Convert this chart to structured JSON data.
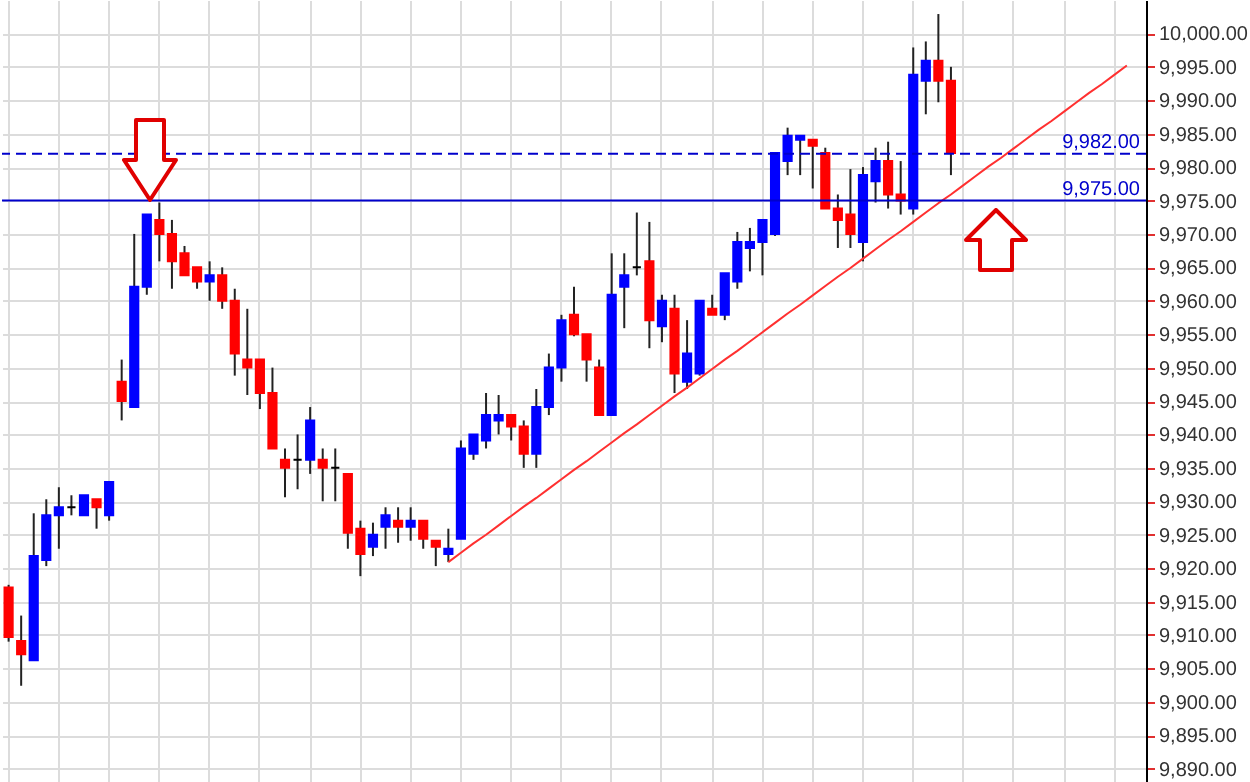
{
  "chart_data": {
    "type": "candlestick",
    "tick_labels": "y",
    "grid": true,
    "categories": [
      null,
      null,
      null,
      null,
      null,
      null,
      null,
      null,
      null,
      null,
      null,
      null,
      null,
      null,
      null,
      null,
      null,
      null,
      null,
      null,
      null,
      null,
      null,
      null,
      null,
      null,
      null,
      null,
      null,
      null,
      null,
      null,
      null,
      null,
      null,
      null,
      null,
      null,
      null,
      null,
      null,
      null,
      null,
      null,
      null,
      null,
      null,
      null,
      null,
      null,
      null,
      null,
      null,
      null,
      null,
      null,
      null,
      null,
      null,
      null,
      null,
      null,
      null,
      null,
      null,
      null,
      null,
      null,
      null,
      null,
      null,
      null,
      null,
      null,
      null,
      null,
      null,
      null,
      null,
      null,
      null,
      null,
      null,
      null,
      null,
      null,
      null,
      null,
      null,
      null,
      null
    ],
    "ohlc": [
      [
        9917.1,
        9917.5,
        9909.0,
        9909.7
      ],
      [
        9909.1,
        9912.9,
        9902.4,
        9907.1
      ],
      [
        9906.2,
        9928.2,
        9906.2,
        9921.8
      ],
      [
        9921.2,
        9930.3,
        9920.3,
        9927.9
      ],
      [
        9927.9,
        9932.1,
        9922.9,
        9929.1
      ],
      [
        9929.1,
        9930.9,
        9927.9,
        9929.1
      ],
      [
        9927.9,
        9930.9,
        9927.9,
        9930.9
      ],
      [
        9930.3,
        9930.3,
        9925.9,
        9929.1
      ],
      [
        9927.9,
        9932.9,
        9927.1,
        9932.9
      ],
      [
        9947.9,
        9951.2,
        9942.1,
        9945.0
      ],
      [
        9944.1,
        9970.0,
        9944.1,
        9962.1
      ],
      [
        9962.1,
        9972.9,
        9960.9,
        9972.9
      ],
      [
        9972.1,
        9974.7,
        9965.9,
        9970.0
      ],
      [
        9970.0,
        9972.1,
        9961.8,
        9965.9
      ],
      [
        9967.1,
        9968.2,
        9963.8,
        9963.8
      ],
      [
        9965.0,
        9965.0,
        9961.8,
        9962.9
      ],
      [
        9962.9,
        9965.9,
        9960.0,
        9963.8
      ],
      [
        9963.8,
        9965.0,
        9958.8,
        9960.0
      ],
      [
        9960.0,
        9961.8,
        9948.8,
        9952.1
      ],
      [
        9951.2,
        9958.8,
        9945.9,
        9950.0
      ],
      [
        9951.2,
        9951.2,
        9943.8,
        9946.2
      ],
      [
        9946.2,
        9950.0,
        9937.9,
        9937.9
      ],
      [
        9936.2,
        9937.9,
        9930.6,
        9935.0
      ],
      [
        9936.2,
        9940.0,
        9931.8,
        9936.2
      ],
      [
        9936.2,
        9944.1,
        9934.1,
        9942.1
      ],
      [
        9936.2,
        9937.9,
        9930.0,
        9935.0
      ],
      [
        9935.0,
        9937.9,
        9930.0,
        9935.0
      ],
      [
        9934.1,
        9934.1,
        9922.9,
        9925.3
      ],
      [
        9925.9,
        9927.1,
        9918.8,
        9922.1
      ],
      [
        9923.2,
        9926.8,
        9921.8,
        9925.0
      ],
      [
        9926.2,
        9929.1,
        9922.9,
        9927.9
      ],
      [
        9927.1,
        9929.1,
        9923.8,
        9926.2
      ],
      [
        9926.2,
        9929.1,
        9924.1,
        9927.1
      ],
      [
        9927.1,
        9927.1,
        9922.9,
        9924.4
      ],
      [
        9924.1,
        9924.1,
        9920.3,
        9923.2
      ],
      [
        9922.1,
        9925.9,
        9920.9,
        9922.9
      ],
      [
        9924.4,
        9939.1,
        9924.4,
        9937.9
      ],
      [
        9937.1,
        9940.0,
        9936.2,
        9940.0
      ],
      [
        9939.1,
        9946.2,
        9937.9,
        9942.9
      ],
      [
        9942.1,
        9945.9,
        9940.0,
        9942.9
      ],
      [
        9942.9,
        9942.9,
        9939.1,
        9941.2
      ],
      [
        9941.2,
        9942.1,
        9935.0,
        9937.1
      ],
      [
        9937.1,
        9946.8,
        9935.0,
        9944.1
      ],
      [
        9944.1,
        9952.1,
        9942.9,
        9950.0
      ],
      [
        9950.0,
        9957.9,
        9947.9,
        9957.1
      ],
      [
        9957.9,
        9962.1,
        9954.7,
        9955.0
      ],
      [
        9955.0,
        9955.0,
        9947.9,
        9951.2
      ],
      [
        9950.0,
        9951.2,
        9942.9,
        9942.9
      ],
      [
        9942.9,
        9967.1,
        9942.9,
        9960.9
      ],
      [
        9962.1,
        9967.1,
        9955.9,
        9963.8
      ],
      [
        9965.0,
        9973.2,
        9963.8,
        9965.0
      ],
      [
        9965.9,
        9971.8,
        9952.9,
        9957.1
      ],
      [
        9956.2,
        9960.9,
        9953.8,
        9960.0
      ],
      [
        9958.8,
        9960.9,
        9946.2,
        9949.1
      ],
      [
        9947.9,
        9957.1,
        9946.8,
        9952.1
      ],
      [
        9949.1,
        9960.0,
        9948.8,
        9960.0
      ],
      [
        9958.8,
        9960.9,
        9957.9,
        9957.9
      ],
      [
        9957.9,
        9964.1,
        9957.1,
        9964.1
      ],
      [
        9962.9,
        9970.3,
        9961.8,
        9968.8
      ],
      [
        9967.9,
        9970.9,
        9964.4,
        9968.8
      ],
      [
        9968.8,
        9972.1,
        9963.8,
        9972.1
      ],
      [
        9970.0,
        9982.1,
        9969.7,
        9982.1
      ],
      [
        9980.9,
        9985.9,
        9978.8,
        9984.7
      ],
      [
        9984.1,
        9984.7,
        9978.8,
        9984.7
      ],
      [
        9984.1,
        9984.1,
        9976.8,
        9983.2
      ],
      [
        9982.1,
        9982.9,
        9973.8,
        9973.8
      ],
      [
        9973.8,
        9975.9,
        9967.9,
        9972.1
      ],
      [
        9972.9,
        9979.7,
        9967.9,
        9970.0
      ],
      [
        9968.8,
        9980.0,
        9965.9,
        9978.8
      ],
      [
        9977.9,
        9982.9,
        9974.7,
        9980.9
      ],
      [
        9980.9,
        9983.8,
        9973.8,
        9975.9
      ],
      [
        9975.9,
        9980.9,
        9972.9,
        9975.0
      ],
      [
        9973.8,
        9997.9,
        9972.9,
        9993.8
      ],
      [
        9992.9,
        9998.8,
        9987.9,
        9995.9
      ],
      [
        9995.9,
        10002.9,
        9989.7,
        9992.9
      ],
      [
        9992.9,
        9995.0,
        9978.8,
        9982.1
      ],
      null,
      null,
      null,
      null,
      null,
      null,
      null,
      null,
      null,
      null,
      null,
      null,
      null,
      null,
      null
    ],
    "colors": [
      "#ff0000",
      "#ff0000",
      "#0000ff",
      "#0000ff",
      "#0000ff",
      "#000000",
      "#0000ff",
      "#ff0000",
      "#0000ff",
      "#ff0000",
      "#0000ff",
      "#0000ff",
      "#ff0000",
      "#ff0000",
      "#ff0000",
      "#ff0000",
      "#0000ff",
      "#ff0000",
      "#ff0000",
      "#ff0000",
      "#ff0000",
      "#ff0000",
      "#ff0000",
      "#000000",
      "#0000ff",
      "#ff0000",
      "#000000",
      "#ff0000",
      "#ff0000",
      "#0000ff",
      "#0000ff",
      "#ff0000",
      "#0000ff",
      "#ff0000",
      "#ff0000",
      "#0000ff",
      "#0000ff",
      "#0000ff",
      "#0000ff",
      "#0000ff",
      "#ff0000",
      "#ff0000",
      "#0000ff",
      "#0000ff",
      "#0000ff",
      "#ff0000",
      "#ff0000",
      "#ff0000",
      "#0000ff",
      "#0000ff",
      "#000000",
      "#ff0000",
      "#0000ff",
      "#ff0000",
      "#0000ff",
      "#0000ff",
      "#ff0000",
      "#0000ff",
      "#0000ff",
      "#0000ff",
      "#0000ff",
      "#0000ff",
      "#0000ff",
      "#0000ff",
      "#ff0000",
      "#ff0000",
      "#ff0000",
      "#ff0000",
      "#0000ff",
      "#0000ff",
      "#ff0000",
      "#ff0000",
      "#0000ff",
      "#0000ff",
      "#ff0000",
      "#ff0000",
      null,
      null,
      null,
      null,
      null,
      null,
      null,
      null,
      null,
      null,
      null,
      null,
      null,
      null,
      null
    ],
    "series": [
      {
        "type": "line",
        "color": "#ff3030",
        "values": [
          null,
          null,
          null,
          null,
          null,
          null,
          null,
          null,
          null,
          null,
          null,
          null,
          null,
          null,
          null,
          null,
          null,
          null,
          null,
          null,
          null,
          null,
          null,
          null,
          null,
          null,
          null,
          null,
          null,
          null,
          null,
          null,
          null,
          null,
          null,
          9920.9,
          9922.3,
          9923.7,
          9925.0,
          9926.4,
          9927.8,
          9929.2,
          9930.5,
          9931.9,
          9933.3,
          9934.7,
          9936.0,
          9937.4,
          9938.8,
          9940.2,
          9941.5,
          9942.9,
          9944.3,
          9945.7,
          9947.0,
          9948.4,
          9949.8,
          9951.2,
          9952.5,
          9953.9,
          9955.3,
          9956.7,
          9958.1,
          9959.4,
          9960.8,
          9962.2,
          9963.6,
          9964.9,
          9966.3,
          9967.7,
          9969.1,
          9970.4,
          9971.8,
          9973.2,
          9974.6,
          9975.9,
          9977.3,
          9978.7,
          9980.1,
          9981.4,
          9982.8,
          9984.2,
          9985.6,
          9986.9,
          9988.3,
          9989.7,
          9991.1,
          9992.4,
          9993.8,
          9995.2,
          null
        ]
      }
    ],
    "ref_lines": [
      {
        "axis": "y",
        "value": 9975,
        "label": "9,975.00",
        "color": "#0000cc",
        "line_style": "solid"
      },
      {
        "axis": "y",
        "value": 9982,
        "label": "9,982.00",
        "color": "#0000cc",
        "line_style": "dashed"
      }
    ],
    "ylim": [
      9888,
      10005
    ],
    "yticks": [
      {
        "value": 9890,
        "label": "9,890.00"
      },
      {
        "value": 9895,
        "label": "9,895.00"
      },
      {
        "value": 9900,
        "label": "9,900.00"
      },
      {
        "value": 9905,
        "label": "9,905.00"
      },
      {
        "value": 9910,
        "label": "9,910.00"
      },
      {
        "value": 9915,
        "label": "9,915.00"
      },
      {
        "value": 9920,
        "label": "9,920.00"
      },
      {
        "value": 9925,
        "label": "9,925.00"
      },
      {
        "value": 9930,
        "label": "9,930.00"
      },
      {
        "value": 9935,
        "label": "9,935.00"
      },
      {
        "value": 9940,
        "label": "9,940.00"
      },
      {
        "value": 9945,
        "label": "9,945.00"
      },
      {
        "value": 9950,
        "label": "9,950.00"
      },
      {
        "value": 9955,
        "label": "9,955.00"
      },
      {
        "value": 9960,
        "label": "9,960.00"
      },
      {
        "value": 9965,
        "label": "9,965.00"
      },
      {
        "value": 9970,
        "label": "9,970.00"
      },
      {
        "value": 9975,
        "label": "9,975.00"
      },
      {
        "value": 9980,
        "label": "9,980.00"
      },
      {
        "value": 9985,
        "label": "9,985.00"
      },
      {
        "value": 9990,
        "label": "9,990.00"
      },
      {
        "value": 9995,
        "label": "9,995.00"
      },
      {
        "value": 10000,
        "label": "10,000.00"
      }
    ]
  }
}
